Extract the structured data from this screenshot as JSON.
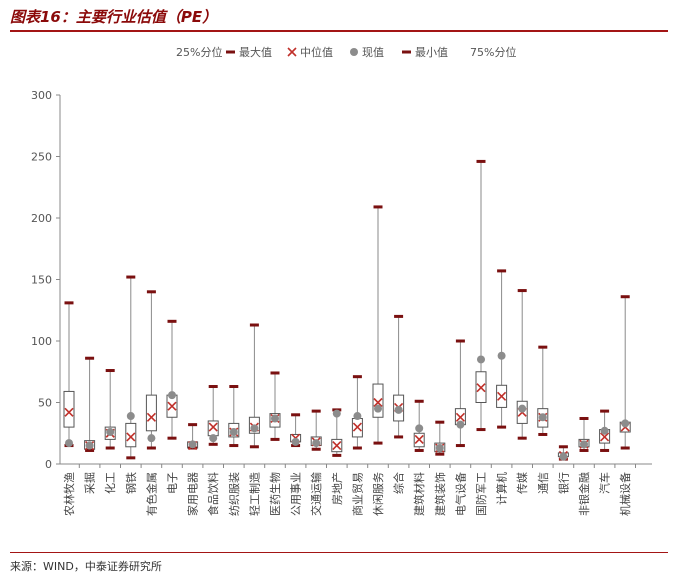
{
  "header": {
    "title": "图表16：主要行业估值（PE）"
  },
  "footer": {
    "source": "来源：WIND，中泰证券研究所"
  },
  "chart_data": {
    "type": "box",
    "ylim": [
      0,
      300
    ],
    "yticks": [
      0,
      50,
      100,
      150,
      200,
      250,
      300
    ],
    "legend": {
      "position": "top",
      "items": [
        {
          "key": "q1",
          "label": "25%分位"
        },
        {
          "key": "max",
          "label": "最大值"
        },
        {
          "key": "median",
          "label": "中位值"
        },
        {
          "key": "current",
          "label": "现值"
        },
        {
          "key": "min",
          "label": "最小值"
        },
        {
          "key": "q3",
          "label": "75%分位"
        }
      ]
    },
    "colors": {
      "box": "#555555",
      "whisker": "#8a8a8a",
      "cap": "#7a1010",
      "median": "#c0302a",
      "current": "#8c8c8c",
      "axis": "#888888"
    },
    "categories": [
      "农林牧渔",
      "采掘",
      "化工",
      "钢铁",
      "有色金属",
      "电子",
      "家用电器",
      "食品饮料",
      "纺织服装",
      "轻工制造",
      "医药生物",
      "公用事业",
      "交通运输",
      "房地产",
      "商业贸易",
      "休闲服务",
      "综合",
      "建筑材料",
      "建筑装饰",
      "电气设备",
      "国防军工",
      "计算机",
      "传媒",
      "通信",
      "银行",
      "非银金融",
      "汽车",
      "机械设备"
    ],
    "min": [
      15,
      11,
      13,
      5,
      13,
      21,
      13,
      16,
      15,
      14,
      20,
      15,
      12,
      7,
      13,
      17,
      22,
      11,
      8,
      15,
      28,
      30,
      21,
      24,
      4,
      11,
      11,
      13
    ],
    "q1": [
      30,
      12,
      20,
      14,
      27,
      38,
      13,
      23,
      22,
      25,
      30,
      18,
      15,
      10,
      22,
      38,
      35,
      14,
      10,
      32,
      50,
      46,
      33,
      30,
      6,
      14,
      17,
      26
    ],
    "median": [
      42,
      15,
      25,
      22,
      38,
      47,
      15,
      30,
      26,
      30,
      37,
      21,
      18,
      15,
      30,
      50,
      46,
      20,
      13,
      38,
      62,
      55,
      42,
      38,
      7,
      16,
      22,
      30
    ],
    "q3": [
      59,
      19,
      30,
      33,
      56,
      56,
      18,
      35,
      33,
      38,
      41,
      24,
      22,
      20,
      37,
      65,
      56,
      25,
      17,
      45,
      75,
      64,
      51,
      45,
      9,
      20,
      28,
      34
    ],
    "max": [
      131,
      86,
      76,
      152,
      140,
      116,
      32,
      63,
      63,
      113,
      74,
      40,
      43,
      44,
      71,
      209,
      120,
      51,
      34,
      100,
      246,
      157,
      141,
      95,
      14,
      37,
      43,
      136
    ],
    "current": [
      17,
      15,
      26,
      39,
      21,
      56,
      16,
      21,
      26,
      29,
      37,
      18,
      17,
      41,
      39,
      45,
      44,
      29,
      13,
      32,
      85,
      88,
      45,
      38,
      6,
      16,
      27,
      33
    ]
  }
}
